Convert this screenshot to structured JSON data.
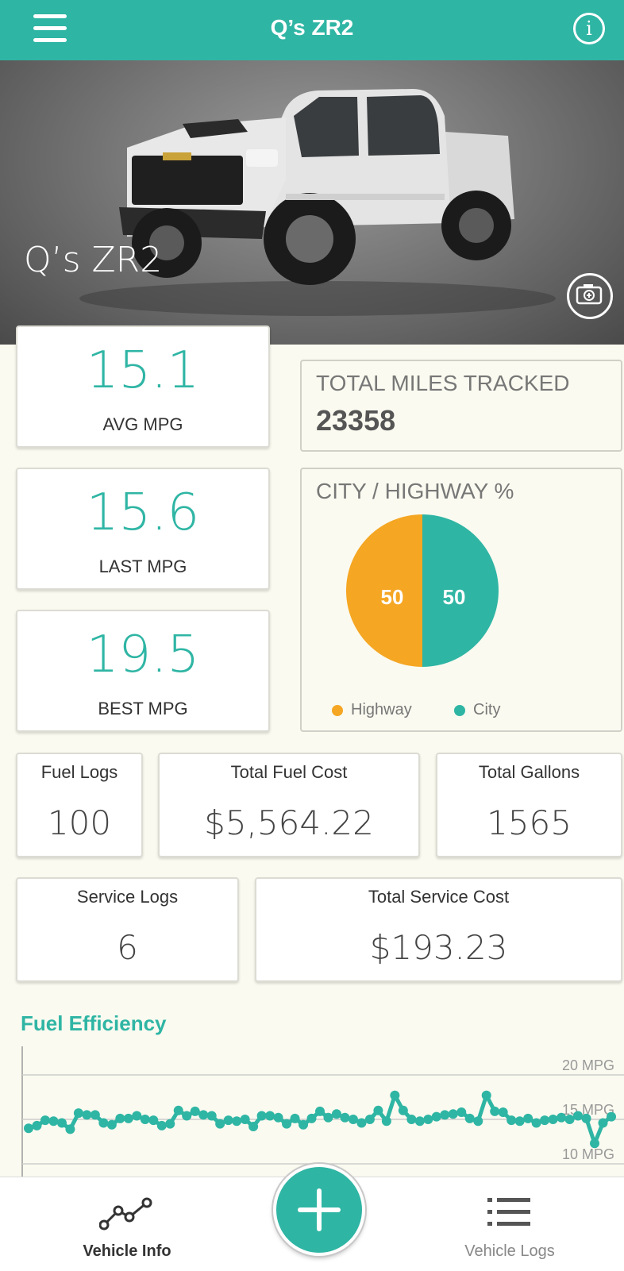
{
  "header": {
    "title": "Q’s ZR2",
    "menu_icon": "hamburger-menu-icon",
    "info_icon": "info-icon",
    "info_glyph": "i"
  },
  "hero": {
    "vehicle_name": "Q’s ZR2",
    "camera_icon": "camera-add-icon"
  },
  "mpg": [
    {
      "value": "15.1",
      "label": "AVG MPG"
    },
    {
      "value": "15.6",
      "label": "LAST MPG"
    },
    {
      "value": "19.5",
      "label": "BEST MPG"
    }
  ],
  "total_miles": {
    "label": "TOTAL MILES TRACKED",
    "value": "23358"
  },
  "city_highway": {
    "label": "CITY / HIGHWAY %",
    "legend": [
      {
        "name": "Highway",
        "color": "#f5a623"
      },
      {
        "name": "City",
        "color": "#2fb5a4"
      }
    ],
    "highway_value": "50",
    "city_value": "50"
  },
  "stats_row1": [
    {
      "label": "Fuel Logs",
      "value": "100"
    },
    {
      "label": "Total Fuel Cost",
      "value": "$5,564.22"
    },
    {
      "label": "Total Gallons",
      "value": "1565"
    }
  ],
  "stats_row2": [
    {
      "label": "Service Logs",
      "value": "6"
    },
    {
      "label": "Total Service Cost",
      "value": "$193.23"
    }
  ],
  "fuel_efficiency": {
    "title": "Fuel Efficiency"
  },
  "chart_data": {
    "type": "line",
    "title": "Fuel Efficiency",
    "y_ticks": [
      "20 MPG",
      "15 MPG",
      "10 MPG"
    ],
    "ylim": [
      10,
      20
    ],
    "series": [
      {
        "values": [
          14.0,
          14.3,
          14.9,
          14.8,
          14.6,
          13.9,
          15.7,
          15.5,
          15.5,
          14.6,
          14.4,
          15.1,
          15.1,
          15.4,
          15.0,
          14.9,
          14.3,
          14.5,
          16.0,
          15.4,
          15.9,
          15.5,
          15.4,
          14.5,
          14.9,
          14.8,
          15.0,
          14.2,
          15.4,
          15.4,
          15.2,
          14.5,
          15.1,
          14.4,
          15.1,
          15.9,
          15.2,
          15.6,
          15.2,
          15.0,
          14.6,
          15.0,
          16.0,
          14.8,
          17.7,
          16.0,
          15.0,
          14.8,
          15.0,
          15.3,
          15.5,
          15.6,
          15.8,
          15.1,
          14.8,
          17.7,
          15.9,
          15.8,
          14.9,
          14.8,
          15.1,
          14.6,
          14.9,
          15.0,
          15.2,
          15.0,
          15.4,
          15.1,
          12.3,
          14.6,
          15.3
        ]
      }
    ]
  },
  "nav": {
    "vehicle_info": {
      "label": "Vehicle Info",
      "icon": "line-chart-icon"
    },
    "add": {
      "icon": "plus-icon"
    },
    "vehicle_logs": {
      "label": "Vehicle Logs",
      "icon": "list-icon"
    }
  }
}
